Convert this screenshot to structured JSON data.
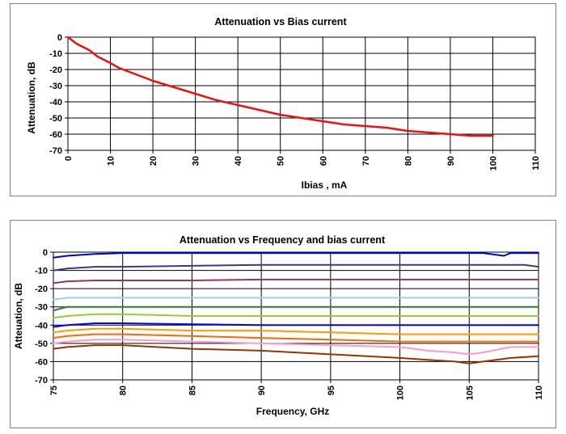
{
  "chart_data": [
    {
      "type": "line",
      "title": "Attenuation vs Bias current",
      "xlabel": "Ibias , mA",
      "ylabel": "Attenuation, dB",
      "xlim": [
        0,
        110
      ],
      "ylim": [
        -70,
        0
      ],
      "xticks": [
        0,
        10,
        20,
        30,
        40,
        50,
        60,
        70,
        80,
        90,
        100,
        110
      ],
      "yticks": [
        0,
        -10,
        -20,
        -30,
        -40,
        -50,
        -60,
        -70
      ],
      "grid": true,
      "series": [
        {
          "color": "#ee1111",
          "x": [
            0,
            2,
            5,
            7,
            10,
            12,
            15,
            20,
            25,
            30,
            35,
            40,
            45,
            50,
            55,
            60,
            65,
            70,
            75,
            80,
            85,
            90,
            95,
            100
          ],
          "y": [
            0,
            -4,
            -8,
            -12,
            -16,
            -19,
            -22,
            -27,
            -31,
            -35,
            -39,
            -42,
            -45,
            -48,
            -50,
            -52,
            -54,
            -55,
            -56,
            -58,
            -59,
            -60,
            -61,
            -61
          ]
        }
      ]
    },
    {
      "type": "line",
      "title": "Attenuation vs Frequency and bias current",
      "xlabel": "Frequency, GHz",
      "ylabel": "Atteuation, dB",
      "xlim": [
        75,
        110
      ],
      "ylim": [
        -70,
        0
      ],
      "xticks": [
        75,
        80,
        85,
        90,
        95,
        100,
        105,
        110
      ],
      "yticks": [
        0,
        -10,
        -20,
        -30,
        -40,
        -50,
        -60,
        -70
      ],
      "grid": true,
      "series": [
        {
          "color": "#0000dd",
          "x": [
            75,
            76,
            77,
            78,
            80,
            90,
            100,
            106,
            107.5,
            108,
            110
          ],
          "y": [
            -3,
            -2,
            -1.5,
            -1,
            -0.5,
            -0.5,
            -0.5,
            -0.5,
            -2,
            -0.5,
            -0.5
          ]
        },
        {
          "color": "#3a3a8a",
          "x": [
            75,
            76,
            78,
            80,
            85,
            90,
            100,
            105,
            109,
            110
          ],
          "y": [
            -10,
            -9,
            -8,
            -8,
            -7.5,
            -7,
            -7,
            -7,
            -7,
            -8
          ]
        },
        {
          "color": "#993366",
          "x": [
            75,
            76,
            78,
            80,
            85,
            90,
            100,
            105,
            110
          ],
          "y": [
            -17,
            -16,
            -15.5,
            -15.5,
            -15.5,
            -15,
            -15,
            -15,
            -15
          ]
        },
        {
          "color": "#99ccff",
          "x": [
            75,
            76,
            78,
            80,
            85,
            90,
            100,
            105,
            110
          ],
          "y": [
            -26,
            -25,
            -25,
            -25,
            -25,
            -25,
            -25,
            -25,
            -25
          ]
        },
        {
          "color": "#2e7d32",
          "x": [
            75,
            76,
            78,
            80,
            85,
            90,
            100,
            105,
            110
          ],
          "y": [
            -32,
            -30,
            -30,
            -30,
            -30,
            -30,
            -30,
            -30,
            -30
          ]
        },
        {
          "color": "#99cc33",
          "x": [
            75,
            76,
            78,
            80,
            85,
            90,
            100,
            105,
            110
          ],
          "y": [
            -36,
            -35,
            -34,
            -34,
            -35,
            -35,
            -35,
            -35,
            -35
          ]
        },
        {
          "color": "#0000ff",
          "x": [
            75,
            76,
            78,
            80,
            85,
            90,
            95,
            100,
            105,
            110
          ],
          "y": [
            -41,
            -40,
            -39,
            -39,
            -39.5,
            -40,
            -40,
            -40,
            -40,
            -40
          ]
        },
        {
          "color": "#ff9900",
          "x": [
            75,
            76,
            78,
            80,
            85,
            90,
            95,
            100,
            105,
            110
          ],
          "y": [
            -44,
            -43,
            -42,
            -42,
            -43,
            -43,
            -44,
            -45,
            -45,
            -45
          ]
        },
        {
          "color": "#ff6600",
          "x": [
            75,
            76,
            78,
            80,
            85,
            90,
            95,
            100,
            105,
            110
          ],
          "y": [
            -47,
            -46,
            -45,
            -45,
            -46,
            -47,
            -48,
            -49,
            -49,
            -49
          ]
        },
        {
          "color": "#ff99cc",
          "x": [
            75,
            76,
            78,
            80,
            85,
            90,
            95,
            100,
            102,
            104,
            105,
            106,
            108,
            110
          ],
          "y": [
            -50,
            -49,
            -48,
            -48,
            -49,
            -50,
            -51,
            -52,
            -54,
            -55,
            -56,
            -55,
            -52,
            -52
          ]
        },
        {
          "color": "#993300",
          "x": [
            75,
            76,
            78,
            80,
            85,
            90,
            95,
            100,
            102,
            104,
            105,
            106,
            108,
            110
          ],
          "y": [
            -53,
            -52,
            -51,
            -51,
            -53,
            -54,
            -56,
            -58,
            -59,
            -60,
            -61,
            -60,
            -58,
            -57
          ]
        }
      ]
    }
  ]
}
